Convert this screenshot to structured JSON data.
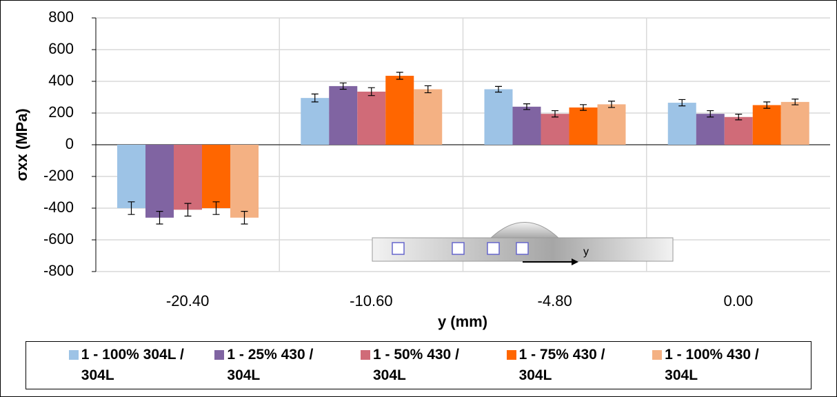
{
  "chart_data": {
    "type": "bar",
    "y_label": "σxx (MPa)",
    "x_label": "y (mm)",
    "categories": [
      "-20.40",
      "-10.60",
      "-4.80",
      "0.00"
    ],
    "series": [
      {
        "name": "1 - 100% 304L / 304L",
        "color": "#9dc3e6",
        "values": [
          -400,
          295,
          350,
          265
        ],
        "errors": [
          40,
          25,
          18,
          20
        ]
      },
      {
        "name": "1 - 25% 430 / 304L",
        "color": "#8064a2",
        "values": [
          -460,
          370,
          240,
          195
        ],
        "errors": [
          40,
          20,
          18,
          20
        ]
      },
      {
        "name": "1 - 50% 430 / 304L",
        "color": "#d06b78",
        "values": [
          -410,
          335,
          195,
          175
        ],
        "errors": [
          40,
          25,
          20,
          18
        ]
      },
      {
        "name": "1 - 75% 430 / 304L",
        "color": "#ff6600",
        "values": [
          -400,
          435,
          235,
          250
        ],
        "errors": [
          40,
          22,
          18,
          20
        ]
      },
      {
        "name": "1 - 100% 430 / 304L",
        "color": "#f4b183",
        "values": [
          -460,
          350,
          255,
          270
        ],
        "errors": [
          40,
          22,
          20,
          18
        ]
      }
    ],
    "ylim": [
      -800,
      800
    ],
    "yticks": [
      -800,
      -600,
      -400,
      -200,
      0,
      200,
      400,
      600,
      800
    ],
    "grid": true,
    "inset_label": "y"
  }
}
